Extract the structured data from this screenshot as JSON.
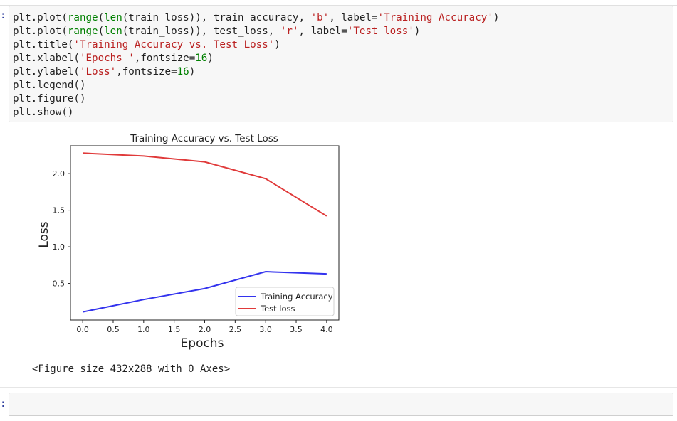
{
  "cells": [
    {
      "prompt": ":",
      "code_lines": [
        [
          {
            "t": "plt.plot("
          },
          {
            "t": "range",
            "c": "k"
          },
          {
            "t": "("
          },
          {
            "t": "len",
            "c": "k"
          },
          {
            "t": "(train_loss)), train_accuracy, "
          },
          {
            "t": "'b'",
            "c": "s"
          },
          {
            "t": ", label="
          },
          {
            "t": "'Training Accuracy'",
            "c": "s"
          },
          {
            "t": ")"
          }
        ],
        [
          {
            "t": "plt.plot("
          },
          {
            "t": "range",
            "c": "k"
          },
          {
            "t": "("
          },
          {
            "t": "len",
            "c": "k"
          },
          {
            "t": "(train_loss)), test_loss, "
          },
          {
            "t": "'r'",
            "c": "s"
          },
          {
            "t": ", label="
          },
          {
            "t": "'Test loss'",
            "c": "s"
          },
          {
            "t": ")"
          }
        ],
        [
          {
            "t": "plt.title("
          },
          {
            "t": "'Training Accuracy vs. Test Loss'",
            "c": "s"
          },
          {
            "t": ")"
          }
        ],
        [
          {
            "t": "plt.xlabel("
          },
          {
            "t": "'Epochs '",
            "c": "s"
          },
          {
            "t": ",fontsize="
          },
          {
            "t": "16",
            "c": "n"
          },
          {
            "t": ")"
          }
        ],
        [
          {
            "t": "plt.ylabel("
          },
          {
            "t": "'Loss'",
            "c": "s"
          },
          {
            "t": ",fontsize="
          },
          {
            "t": "16",
            "c": "n"
          },
          {
            "t": ")"
          }
        ],
        [
          {
            "t": "plt.legend()"
          }
        ],
        [
          {
            "t": "plt.figure()"
          }
        ],
        [
          {
            "t": "plt.show()"
          }
        ]
      ]
    },
    {
      "prompt": ":"
    }
  ],
  "output_text": "<Figure size 432x288 with 0 Axes>",
  "chart_data": {
    "type": "line",
    "title": "Training Accuracy vs. Test Loss",
    "xlabel": "Epochs",
    "ylabel": "Loss",
    "x": [
      0,
      1,
      2,
      3,
      4
    ],
    "xlim": [
      -0.2,
      4.2
    ],
    "ylim": [
      0.0,
      2.38
    ],
    "xticks": [
      "0.0",
      "0.5",
      "1.0",
      "1.5",
      "2.0",
      "2.5",
      "3.0",
      "3.5",
      "4.0"
    ],
    "xtick_values": [
      0,
      0.5,
      1,
      1.5,
      2,
      2.5,
      3,
      3.5,
      4
    ],
    "yticks": [
      "0.5",
      "1.0",
      "1.5",
      "2.0"
    ],
    "ytick_values": [
      0.5,
      1.0,
      1.5,
      2.0
    ],
    "grid": false,
    "legend_position": "lower-right",
    "series": [
      {
        "name": "Training Accuracy",
        "color": "#3333ee",
        "values": [
          0.11,
          0.28,
          0.43,
          0.66,
          0.63
        ]
      },
      {
        "name": "Test loss",
        "color": "#e03a3a",
        "values": [
          2.28,
          2.24,
          2.16,
          1.93,
          1.42
        ]
      }
    ]
  }
}
